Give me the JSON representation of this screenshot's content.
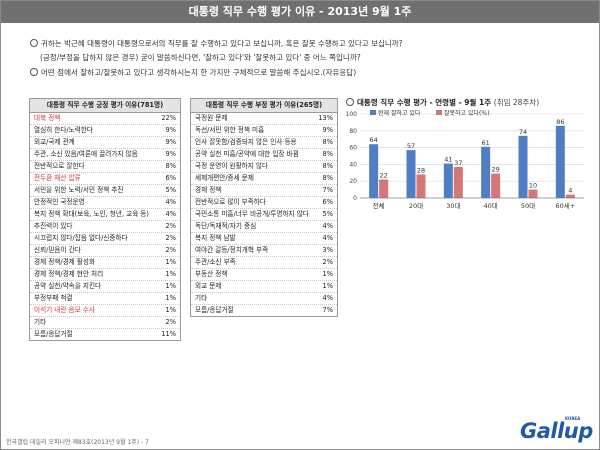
{
  "header": {
    "title": "대통령 직무 수행 평가 이유 - 2013년 9월 1주"
  },
  "questions": {
    "q1_line1": "귀하는 박근혜 대통령이 대통령으로서의 직무를 잘 수행하고 있다고 보십니까, 혹은 잘못 수행하고 있다고 보십니까?",
    "q1_line2": "(긍정/부정을 답하지 않은 경우) 굳이 말씀하신다면, '잘하고 있다'와 '잘못하고 있다' 중 어느 쪽입니까?",
    "q2": "어떤 점에서 잘하고/잘못하고 있다고 생각하시는지 한 가지만 구체적으로 말씀해 주십시오.(자유응답)"
  },
  "positive_table": {
    "title": "대통령 직무 수행 긍정 평가 이유(781명)",
    "rows": [
      {
        "label": "대북 정책",
        "value": "22%",
        "highlight": true
      },
      {
        "label": "열심히 한다/노력한다",
        "value": "9%",
        "highlight": false
      },
      {
        "label": "외교/국제 관계",
        "value": "9%",
        "highlight": false
      },
      {
        "label": "주관, 소신 있음/여론에 끌려가지 않음",
        "value": "9%",
        "highlight": false
      },
      {
        "label": "전반적으로 잘한다",
        "value": "8%",
        "highlight": false
      },
      {
        "label": "전두환 재산 압류",
        "value": "6%",
        "highlight": true
      },
      {
        "label": "서민을 위한 노력/서민 정책 추진",
        "value": "5%",
        "highlight": false
      },
      {
        "label": "안정적인 국정운영",
        "value": "4%",
        "highlight": false
      },
      {
        "label": "복지 정책 확대(보육, 노인, 청년, 교육 등)",
        "value": "4%",
        "highlight": false
      },
      {
        "label": "추진력이 있다",
        "value": "2%",
        "highlight": false
      },
      {
        "label": "시끄럽지 않다/잡음 없다/신중하다",
        "value": "2%",
        "highlight": false
      },
      {
        "label": "신뢰/믿음이 간다",
        "value": "2%",
        "highlight": false
      },
      {
        "label": "경제 정책/경제 활성화",
        "value": "1%",
        "highlight": false
      },
      {
        "label": "경제 정책/경제 현안 처리",
        "value": "1%",
        "highlight": false
      },
      {
        "label": "공약 실천/약속을 지킨다",
        "value": "1%",
        "highlight": false
      },
      {
        "label": "부정부패 척결",
        "value": "1%",
        "highlight": false
      },
      {
        "label": "이석기 내란 음모 수사",
        "value": "1%",
        "highlight": true
      },
      {
        "label": "기타",
        "value": "2%",
        "highlight": false
      },
      {
        "label": "모름/응답거절",
        "value": "11%",
        "highlight": false
      }
    ]
  },
  "negative_table": {
    "title": "대통령 직무 수행 부정 평가 이유(265명)",
    "rows": [
      {
        "label": "국정원 문제",
        "value": "13%"
      },
      {
        "label": "독선/서민 위한 정책 미흡",
        "value": "9%"
      },
      {
        "label": "인사 잘못함/검증되지 않은 인사 등용",
        "value": "8%"
      },
      {
        "label": "공약 실천 미흡/공약에 대한 입장 바뀜",
        "value": "8%"
      },
      {
        "label": "국정 운영이 원활하지 않다",
        "value": "8%"
      },
      {
        "label": "세제개편안/증세 문제",
        "value": "8%"
      },
      {
        "label": "경제 정책",
        "value": "7%"
      },
      {
        "label": "전반적으로 많이 부족하다",
        "value": "6%"
      },
      {
        "label": "국민소통 미흡/너무 비공개/투명하지 않다",
        "value": "5%"
      },
      {
        "label": "독단/독재적/자기 중심",
        "value": "4%"
      },
      {
        "label": "복지 정책 남발",
        "value": "4%"
      },
      {
        "label": "여야간 갈등/정치개혁 부족",
        "value": "3%"
      },
      {
        "label": "주관/소신 부족",
        "value": "2%"
      },
      {
        "label": "부동산 정책",
        "value": "1%"
      },
      {
        "label": "외교 문제",
        "value": "1%"
      },
      {
        "label": "기타",
        "value": "4%"
      },
      {
        "label": "모름/응답거절",
        "value": "7%"
      }
    ]
  },
  "chart_title": {
    "main": "대통령 직무 수행 평가 - 연령별 - 9월 1주",
    "sub": "(취임 28주차)"
  },
  "chart_data": {
    "type": "bar",
    "categories": [
      "전체",
      "20대",
      "30대",
      "40대",
      "50대",
      "60세+"
    ],
    "series": [
      {
        "name": "잘하고 있다",
        "values": [
          64,
          57,
          41,
          61,
          74,
          86
        ]
      },
      {
        "name": "잘못하고 있다",
        "values": [
          22,
          28,
          37,
          29,
          10,
          4
        ]
      }
    ],
    "ylim": [
      0,
      100
    ],
    "yticks": [
      0,
      20,
      40,
      60,
      80,
      100
    ],
    "colors": {
      "positive": "#4f7fc2",
      "negative": "#c44a4a"
    },
    "legend": {
      "positive_label": "현재 잘하고 있다",
      "negative_label": "잘못하고 있다(%)"
    },
    "grid": true,
    "legend_position": "top"
  },
  "footer": {
    "text": "한국갤럽 데일리 오피니언 제83호(2013년 9월 1주) - 7"
  },
  "logo": {
    "text": "Gallup",
    "small": "KOREA"
  }
}
